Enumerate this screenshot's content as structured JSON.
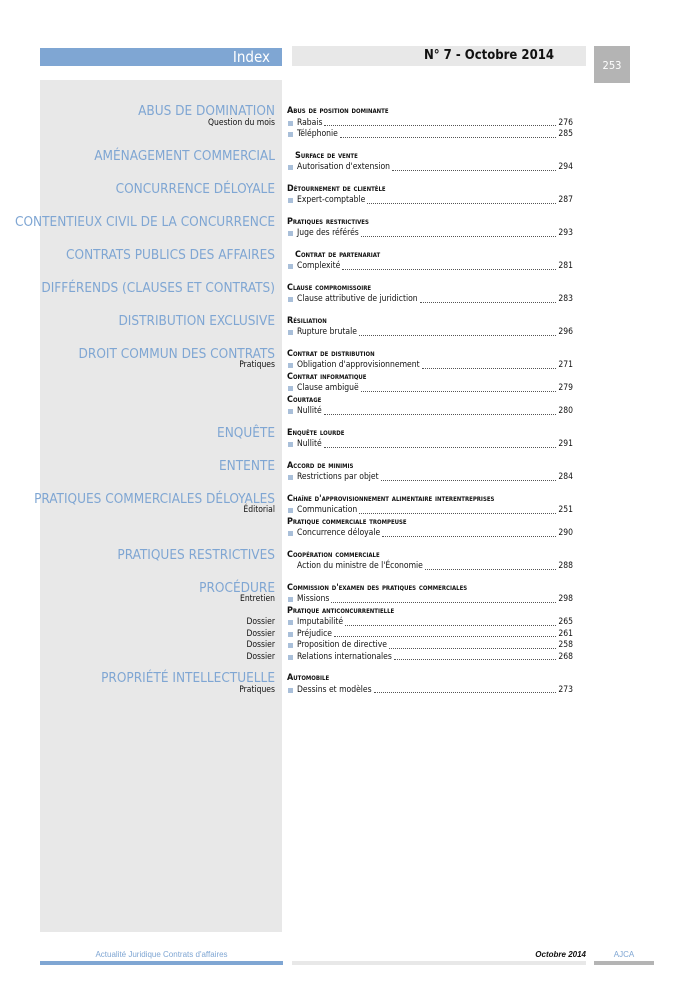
{
  "header": {
    "section": "Index",
    "issue": "N° 7 - Octobre 2014",
    "page": "253"
  },
  "blocks": [
    {
      "title": "ABUS DE DOMINATION",
      "subs": [
        "Question du mois"
      ],
      "lines": [
        {
          "h": "Abus de position dominante"
        },
        {
          "t": "Rabais",
          "p": "276"
        },
        {
          "t": "Téléphonie",
          "p": "285"
        }
      ]
    },
    {
      "title": "AMÉNAGEMENT COMMERCIAL",
      "subs": [],
      "lines": [
        {
          "h": "Surface de vente",
          "ind": true
        },
        {
          "t": "Autorisation d'extension",
          "p": "294"
        }
      ]
    },
    {
      "title": "CONCURRENCE DÉLOYALE",
      "subs": [],
      "lines": [
        {
          "h": "Détournement de clientèle"
        },
        {
          "t": "Expert-comptable",
          "p": "287"
        }
      ]
    },
    {
      "title": "CONTENTIEUX CIVIL DE LA CONCURRENCE",
      "subs": [],
      "lines": [
        {
          "h": "Pratiques restrictives"
        },
        {
          "t": "Juge des référés",
          "p": "293"
        }
      ]
    },
    {
      "title": "CONTRATS PUBLICS DES AFFAIRES",
      "subs": [],
      "lines": [
        {
          "h": "Contrat de partenariat",
          "ind": true
        },
        {
          "t": "Complexité",
          "p": "281"
        }
      ]
    },
    {
      "title": "DIFFÉRENDS (CLAUSES ET CONTRATS)",
      "subs": [],
      "lines": [
        {
          "h": "Clause compromissoire"
        },
        {
          "t": "Clause attributive de juridiction",
          "p": "283"
        }
      ]
    },
    {
      "title": "DISTRIBUTION EXCLUSIVE",
      "subs": [],
      "lines": [
        {
          "h": "Résiliation"
        },
        {
          "t": "Rupture brutale",
          "p": "296"
        }
      ]
    },
    {
      "title": "DROIT COMMUN DES CONTRATS",
      "subs": [
        "Pratiques"
      ],
      "lines": [
        {
          "h": "Contrat de distribution"
        },
        {
          "t": "Obligation d'approvisionnement",
          "p": "271"
        },
        {
          "h": "Contrat informatique"
        },
        {
          "t": "Clause ambiguë",
          "p": "279"
        },
        {
          "h": "Courtage"
        },
        {
          "t": "Nullité",
          "p": "280"
        }
      ]
    },
    {
      "title": "ENQUÊTE",
      "subs": [],
      "lines": [
        {
          "h": "Enquête lourde"
        },
        {
          "t": "Nullité",
          "p": "291"
        }
      ]
    },
    {
      "title": "ENTENTE",
      "subs": [],
      "lines": [
        {
          "h": "Accord de minimis"
        },
        {
          "t": "Restrictions par objet",
          "p": "284"
        }
      ]
    },
    {
      "title": "PRATIQUES COMMERCIALES DÉLOYALES",
      "subs": [
        "Éditorial"
      ],
      "lines": [
        {
          "h": "Chaîne d'approvisionnement alimentaire interentreprises"
        },
        {
          "t": "Communication",
          "p": "251"
        },
        {
          "h": "Pratique commerciale trompeuse"
        },
        {
          "t": "Concurrence déloyale",
          "p": "290"
        }
      ]
    },
    {
      "title": "PRATIQUES RESTRICTIVES",
      "subs": [],
      "lines": [
        {
          "h": "Coopération commerciale"
        },
        {
          "t": "Action du ministre de l'Économie",
          "p": "288",
          "nobullet": true
        }
      ]
    },
    {
      "title": "PROCÉDURE",
      "subs": [
        "Entretien",
        "",
        "Dossier",
        "Dossier",
        "Dossier",
        "Dossier"
      ],
      "lines": [
        {
          "h": "Commission d'examen des pratiques commerciales"
        },
        {
          "t": "Missions",
          "p": "298"
        },
        {
          "h": "Pratique anticoncurrentielle"
        },
        {
          "t": "Imputabilité",
          "p": "265"
        },
        {
          "t": "Préjudice",
          "p": "261"
        },
        {
          "t": "Proposition de directive",
          "p": "258"
        },
        {
          "t": "Relations internationales",
          "p": "268"
        }
      ]
    },
    {
      "title": "PROPRIÉTÉ INTELLECTUELLE",
      "subs": [
        "Pratiques"
      ],
      "lines": [
        {
          "h": "Automobile"
        },
        {
          "t": "Dessins et modèles",
          "p": "273"
        }
      ]
    }
  ],
  "footer": {
    "journal": "Actualité Juridique Contrats d'affaires",
    "date": "Octobre 2014",
    "brand": "AJCA"
  },
  "colors": {
    "accent": "#7fa6d3",
    "panel": "#e8e8e8",
    "page_box": "#b4b4b4"
  }
}
